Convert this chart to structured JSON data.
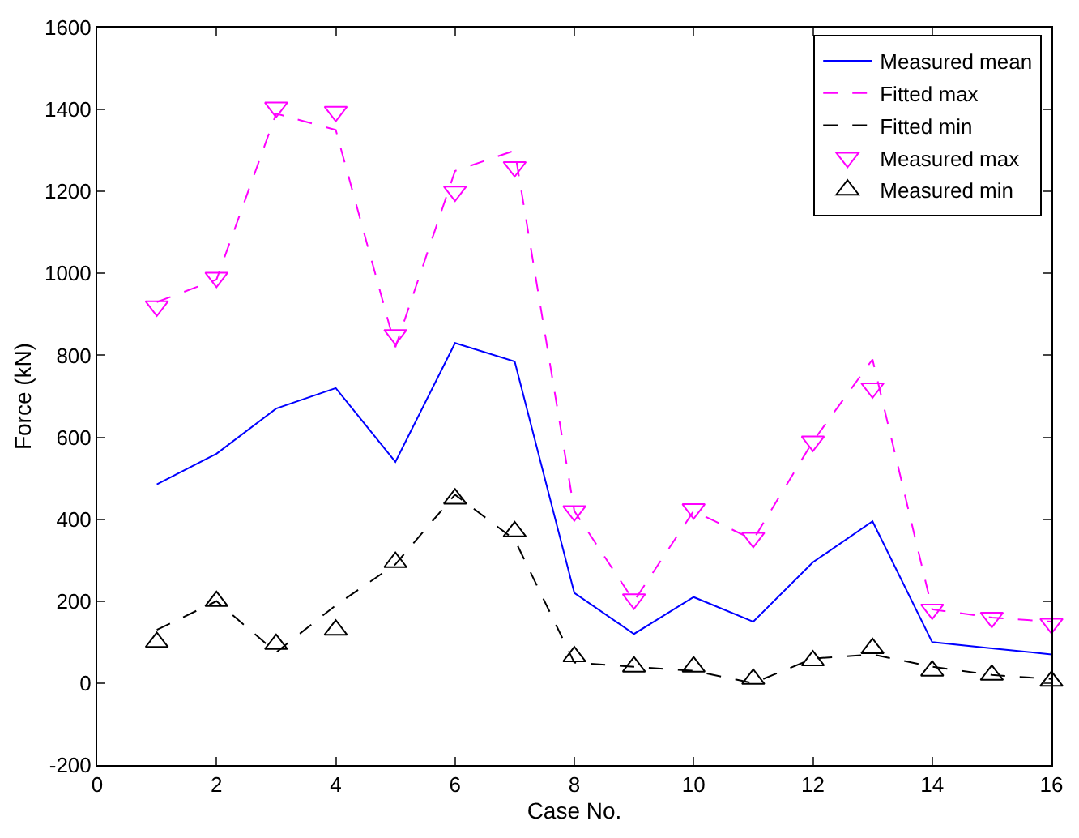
{
  "chart_data": {
    "type": "line",
    "xlabel": "Case No.",
    "ylabel": "Force (kN)",
    "x": [
      1,
      2,
      3,
      4,
      5,
      6,
      7,
      8,
      9,
      10,
      11,
      12,
      13,
      14,
      15,
      16
    ],
    "xlim": [
      0,
      16
    ],
    "xticks": [
      0,
      2,
      4,
      6,
      8,
      10,
      12,
      14,
      16
    ],
    "ylim": [
      -200,
      1600
    ],
    "yticks": [
      -200,
      0,
      200,
      400,
      600,
      800,
      1000,
      1200,
      1400,
      1600
    ],
    "legend": "top right",
    "series": [
      {
        "name": "Measured mean",
        "color": "#0000ff",
        "line_style": "solid",
        "marker": "none",
        "values": [
          485,
          560,
          670,
          720,
          540,
          830,
          785,
          220,
          120,
          210,
          150,
          295,
          395,
          100,
          85,
          70
        ]
      },
      {
        "name": "Fitted max",
        "color": "#ff00ff",
        "line_style": "dashed",
        "marker": "none",
        "values": [
          930,
          985,
          1390,
          1350,
          820,
          1250,
          1300,
          420,
          200,
          420,
          350,
          590,
          790,
          180,
          160,
          150
        ]
      },
      {
        "name": "Fitted min",
        "color": "#000000",
        "line_style": "dashed",
        "marker": "none",
        "values": [
          130,
          200,
          75,
          190,
          290,
          460,
          350,
          50,
          40,
          30,
          0,
          60,
          70,
          40,
          20,
          10
        ]
      },
      {
        "name": "Measured max",
        "type": "scatter",
        "color": "#ff00ff",
        "marker": "triangle-down",
        "values": [
          920,
          990,
          1405,
          1395,
          850,
          1200,
          1260,
          420,
          205,
          425,
          355,
          590,
          720,
          180,
          160,
          145
        ]
      },
      {
        "name": "Measured min",
        "type": "scatter",
        "color": "#000000",
        "marker": "triangle",
        "values": [
          100,
          200,
          95,
          130,
          295,
          450,
          370,
          65,
          40,
          40,
          10,
          55,
          85,
          30,
          20,
          5
        ]
      }
    ]
  }
}
